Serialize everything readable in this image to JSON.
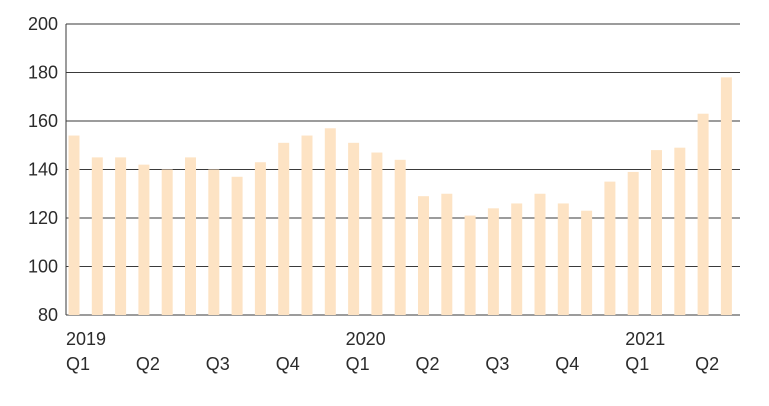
{
  "chart_data": {
    "type": "bar",
    "title": "",
    "xlabel": "",
    "ylabel": "",
    "ylim": [
      80,
      200
    ],
    "yticks": [
      80,
      100,
      120,
      140,
      160,
      180,
      200
    ],
    "grid": true,
    "colors": {
      "bar": "#fde3c4",
      "grid": "#3a3a3a",
      "axis": "#3a3a3a",
      "text": "#2b2b2b"
    },
    "values": [
      154,
      145,
      145,
      142,
      140,
      145,
      140,
      137,
      143,
      151,
      154,
      157,
      151,
      147,
      144,
      129,
      130,
      121,
      124,
      126,
      130,
      126,
      123,
      135,
      139,
      148,
      149,
      163,
      178
    ],
    "year_labels": [
      {
        "index": 0,
        "text": "2019"
      },
      {
        "index": 12,
        "text": "2020"
      },
      {
        "index": 24,
        "text": "2021"
      }
    ],
    "quarter_labels": [
      {
        "index": 0,
        "text": "Q1"
      },
      {
        "index": 3,
        "text": "Q2"
      },
      {
        "index": 6,
        "text": "Q3"
      },
      {
        "index": 9,
        "text": "Q4"
      },
      {
        "index": 12,
        "text": "Q1"
      },
      {
        "index": 15,
        "text": "Q2"
      },
      {
        "index": 18,
        "text": "Q3"
      },
      {
        "index": 21,
        "text": "Q4"
      },
      {
        "index": 24,
        "text": "Q1"
      },
      {
        "index": 27,
        "text": "Q2"
      }
    ]
  }
}
